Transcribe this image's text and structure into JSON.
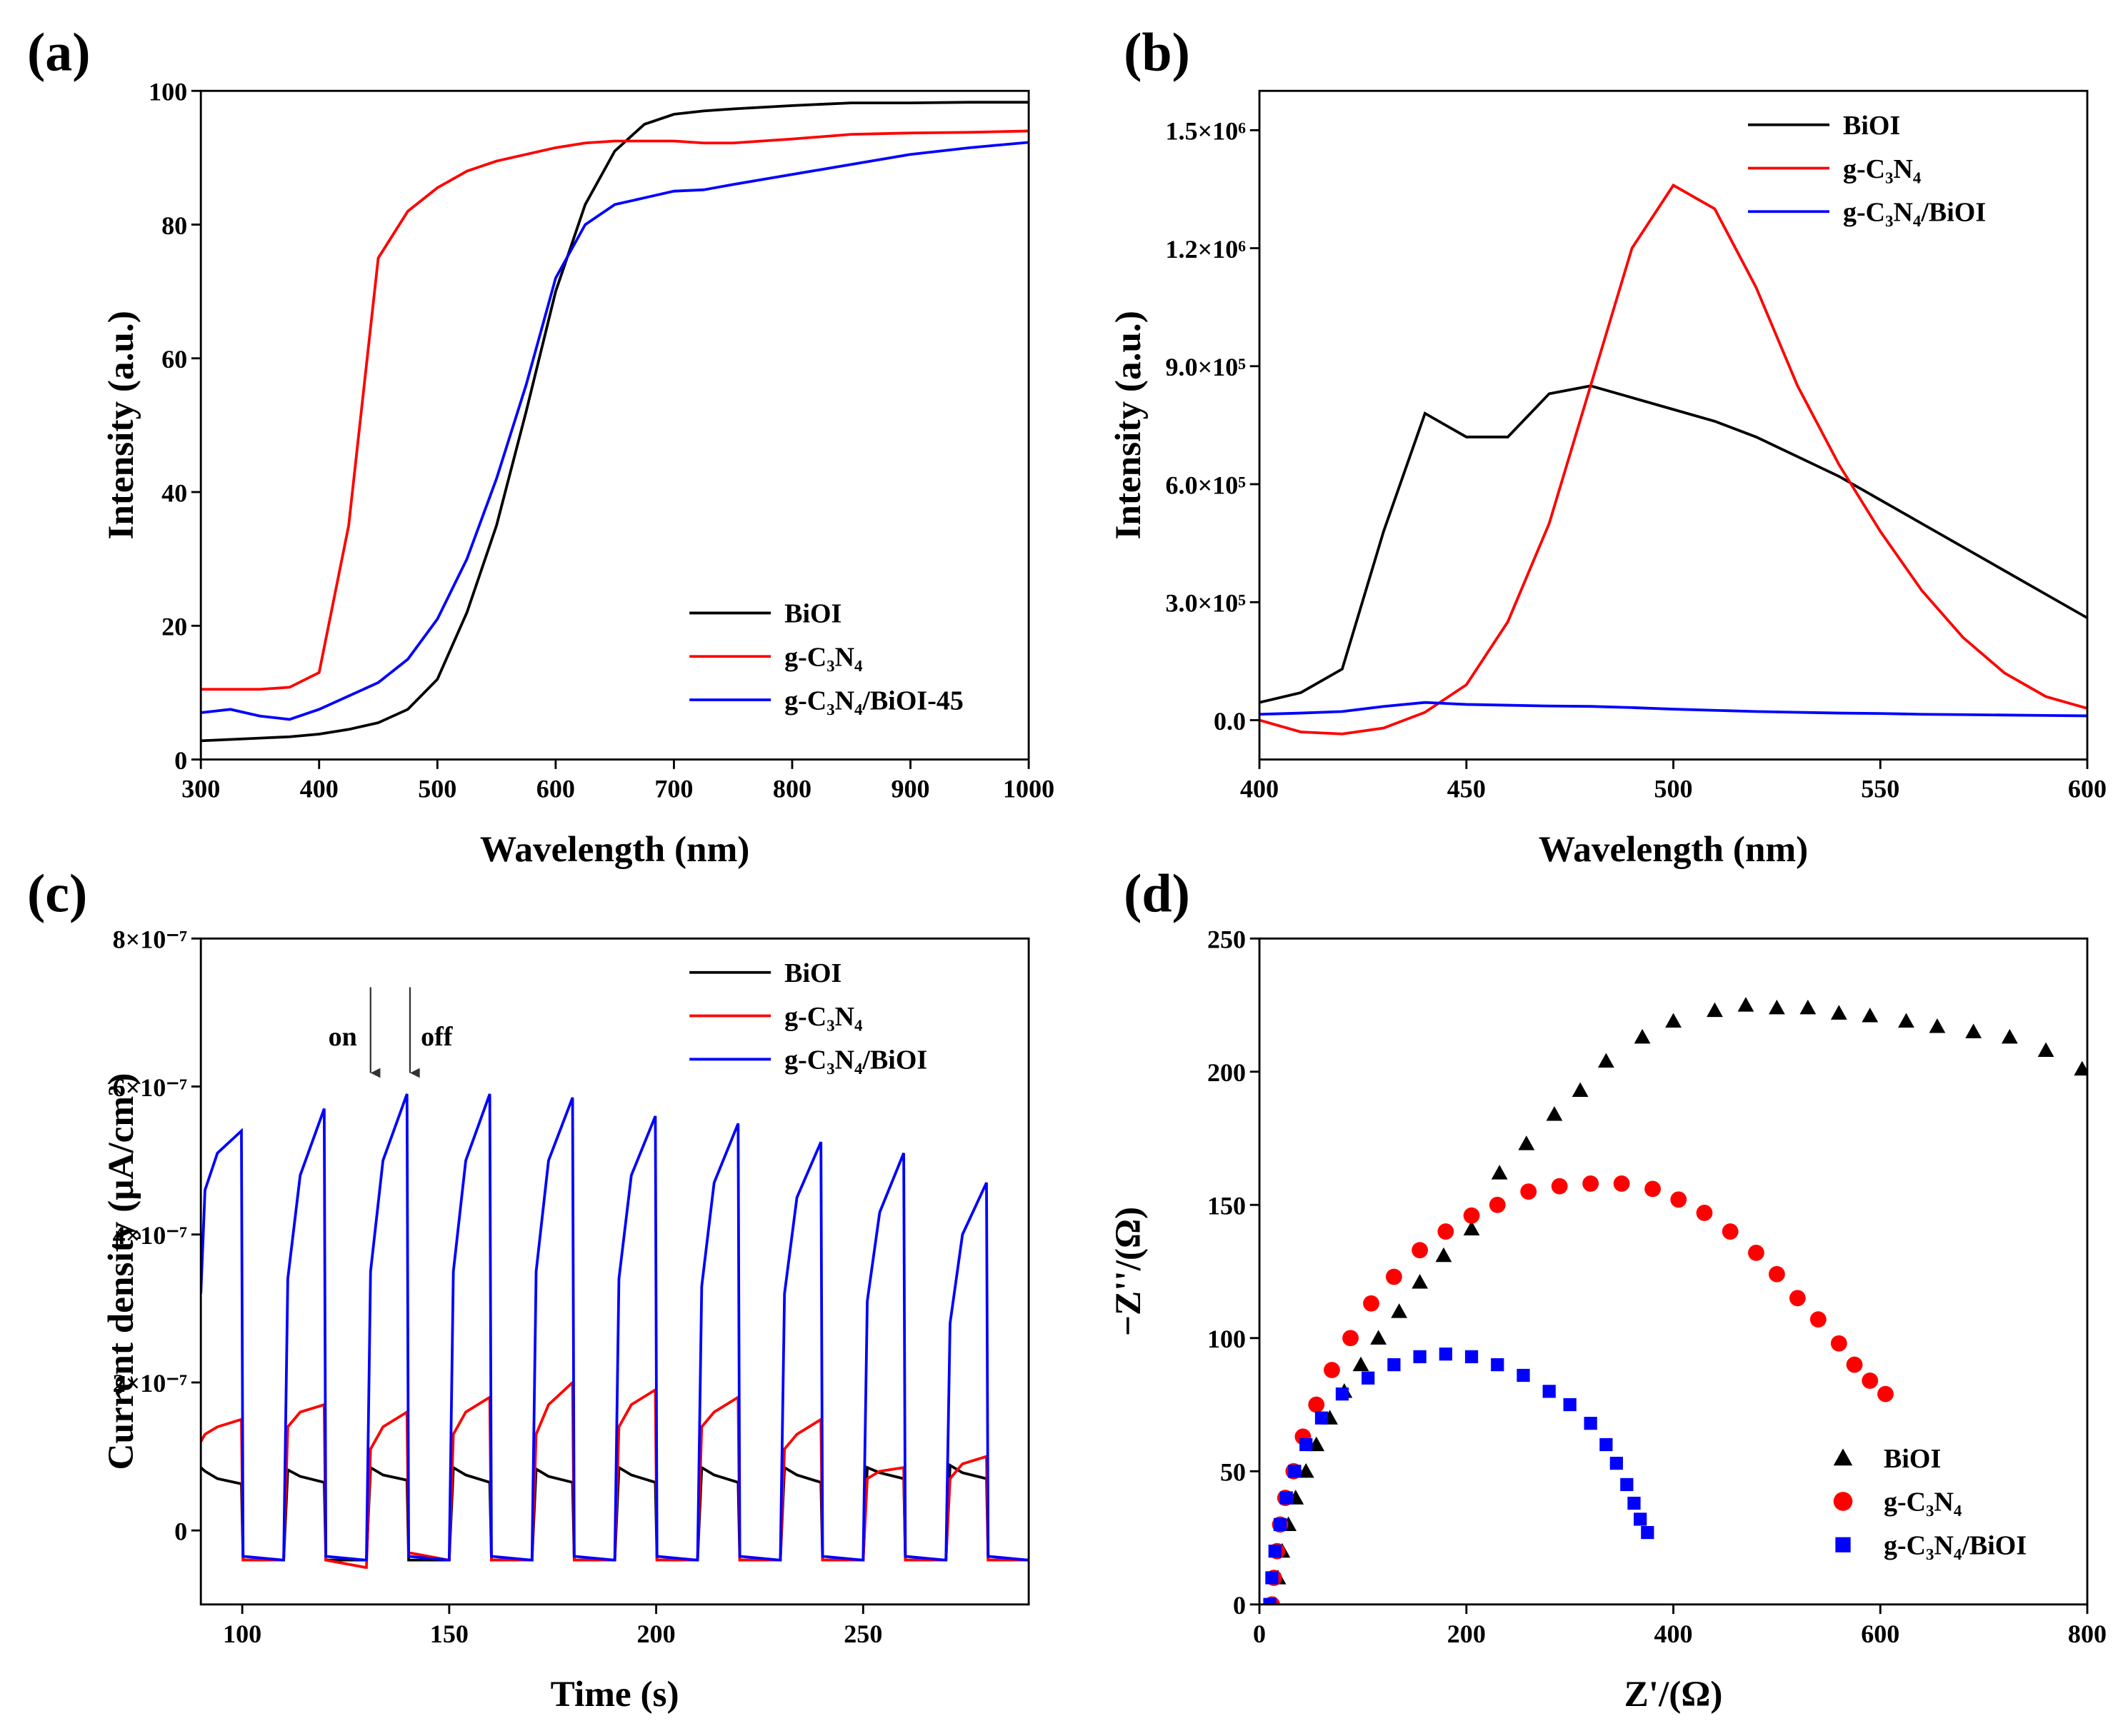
{
  "chart_data": [
    {
      "type": "line",
      "panel": "(a)",
      "xlabel": "Wavelength (nm)",
      "ylabel": "Intensity (a.u.)",
      "xlim": [
        300,
        1000
      ],
      "xticks": [
        300,
        400,
        500,
        600,
        700,
        800,
        900,
        1000
      ],
      "ylim": [
        0,
        100
      ],
      "yticks": [
        0,
        20,
        40,
        60,
        80,
        100
      ],
      "legend": "lower right",
      "x": [
        300,
        325,
        350,
        375,
        400,
        425,
        450,
        475,
        500,
        525,
        550,
        575,
        600,
        625,
        650,
        675,
        700,
        725,
        750,
        800,
        850,
        900,
        950,
        1000
      ],
      "series": [
        {
          "name": "BiOI",
          "color": "#000000",
          "values": [
            2.8,
            3,
            3.2,
            3.4,
            3.8,
            4.5,
            5.5,
            7.5,
            12,
            22,
            35,
            52,
            70,
            83,
            91,
            95,
            96.5,
            97,
            97.3,
            97.8,
            98.2,
            98.2,
            98.3,
            98.3
          ]
        },
        {
          "name": "g-C₃N₄",
          "color": "#ff0000",
          "values": [
            10.5,
            10.5,
            10.5,
            10.8,
            13,
            35,
            75,
            82,
            85.5,
            88,
            89.5,
            90.5,
            91.5,
            92.2,
            92.5,
            92.5,
            92.5,
            92.2,
            92.2,
            92.8,
            93.5,
            93.7,
            93.8,
            94
          ]
        },
        {
          "name": "g-C₃N₄/BiOI-45",
          "color": "#0000ff",
          "values": [
            7,
            7.5,
            6.5,
            6,
            7.5,
            9.5,
            11.5,
            15,
            21,
            30,
            42,
            56,
            72,
            80,
            83,
            84,
            85,
            85.2,
            86,
            87.5,
            89,
            90.5,
            91.5,
            92.3
          ]
        }
      ]
    },
    {
      "type": "line",
      "panel": "(b)",
      "xlabel": "Wavelength (nm)",
      "ylabel": "Intensity (a.u.)",
      "xlim": [
        400,
        600
      ],
      "xticks": [
        400,
        450,
        500,
        550,
        600
      ],
      "ylim": [
        -100000,
        1600000
      ],
      "yticks": [
        {
          "value": 0,
          "label": "0.0"
        },
        {
          "value": 300000,
          "label": "3.0×10⁵"
        },
        {
          "value": 600000,
          "label": "6.0×10⁵"
        },
        {
          "value": 900000,
          "label": "9.0×10⁵"
        },
        {
          "value": 1200000,
          "label": "1.2×10⁶"
        },
        {
          "value": 1500000,
          "label": "1.5×10⁶"
        }
      ],
      "legend": "upper right",
      "x": [
        400,
        410,
        420,
        430,
        440,
        450,
        460,
        470,
        480,
        490,
        500,
        510,
        520,
        530,
        540,
        550,
        560,
        570,
        580,
        590,
        600
      ],
      "series": [
        {
          "name": "BiOI",
          "color": "#000000",
          "values": [
            45000,
            70000,
            130000,
            480000,
            780000,
            720000,
            720000,
            830000,
            850000,
            820000,
            790000,
            760000,
            720000,
            670000,
            620000,
            560000,
            500000,
            440000,
            380000,
            320000,
            260000
          ]
        },
        {
          "name": "g-C₃N₄",
          "color": "#ff0000",
          "values": [
            0,
            -30000,
            -35000,
            -20000,
            20000,
            90000,
            250000,
            500000,
            850000,
            1200000,
            1360000,
            1300000,
            1100000,
            850000,
            650000,
            480000,
            330000,
            210000,
            120000,
            60000,
            30000
          ]
        },
        {
          "name": "g-C₃N₄/BiOI",
          "color": "#0000ff",
          "values": [
            15000,
            18000,
            22000,
            35000,
            45000,
            40000,
            38000,
            36000,
            35000,
            32000,
            28000,
            25000,
            22000,
            20000,
            18000,
            17000,
            15000,
            14000,
            13000,
            12000,
            11000
          ]
        }
      ]
    },
    {
      "type": "line",
      "panel": "(c)",
      "xlabel": "Time (s)",
      "ylabel": "Current density (μA/cm²)",
      "xlim": [
        90,
        290
      ],
      "xticks": [
        100,
        150,
        200,
        250
      ],
      "ylim": [
        -1e-07,
        8e-07
      ],
      "yticks": [
        0,
        {
          "value": 2e-07,
          "label": "2×10⁻⁷"
        },
        {
          "value": 4e-07,
          "label": "4×10⁻⁷"
        },
        {
          "value": 6e-07,
          "label": "6×10⁻⁷"
        },
        {
          "value": 8e-07,
          "label": "8×10⁻⁷"
        }
      ],
      "legend": "upper right",
      "annotations": [
        "on",
        "off"
      ],
      "x": [
        90,
        91,
        94,
        99.8,
        100.2,
        109.8,
        110,
        111,
        114,
        119.8,
        120.2,
        129.8,
        130,
        131,
        134,
        139.8,
        140.2,
        149.8,
        150,
        151,
        154,
        159.8,
        160.2,
        169.8,
        170,
        171,
        174,
        179.8,
        180.2,
        189.8,
        190,
        191,
        194,
        199.8,
        200.2,
        209.8,
        210,
        211,
        214,
        219.8,
        220.2,
        229.8,
        230,
        231,
        234,
        239.8,
        240.2,
        249.8,
        250,
        251,
        254,
        259.8,
        260.2,
        269.8,
        270,
        271,
        274,
        279.8,
        280.2,
        289.8
      ],
      "series": [
        {
          "name": "BiOI",
          "color": "#000000",
          "values": [
            8.5e-08,
            8e-08,
            7e-08,
            6.3e-08,
            -4e-08,
            -4e-08,
            -4e-08,
            8.2e-08,
            7.3e-08,
            6.5e-08,
            -4e-08,
            -4e-08,
            -4e-08,
            8.5e-08,
            7.5e-08,
            6.8e-08,
            -4e-08,
            -4e-08,
            -4e-08,
            8.5e-08,
            7.5e-08,
            6.5e-08,
            -4e-08,
            -4e-08,
            -4e-08,
            8.3e-08,
            7.3e-08,
            6.5e-08,
            -4e-08,
            -4e-08,
            -4e-08,
            8.5e-08,
            7.5e-08,
            6.5e-08,
            -4e-08,
            -4e-08,
            -4e-08,
            8.5e-08,
            7.5e-08,
            6.5e-08,
            -4e-08,
            -4e-08,
            -4e-08,
            8.5e-08,
            7.5e-08,
            6.5e-08,
            -4e-08,
            -4e-08,
            -4e-08,
            8.5e-08,
            7.8e-08,
            7e-08,
            -4e-08,
            -4e-08,
            -4e-08,
            8.8e-08,
            7.8e-08,
            7e-08,
            -4e-08,
            -4e-08
          ]
        },
        {
          "name": "g-C₃N₄",
          "color": "#ff0000",
          "values": [
            1.2e-07,
            1.3e-07,
            1.4e-07,
            1.5e-07,
            -4e-08,
            -4e-08,
            -4e-08,
            1.4e-07,
            1.6e-07,
            1.7e-07,
            -4e-08,
            -5e-08,
            -5e-08,
            1.1e-07,
            1.4e-07,
            1.6e-07,
            -3e-08,
            -4e-08,
            -4e-08,
            1.3e-07,
            1.6e-07,
            1.8e-07,
            -4e-08,
            -4e-08,
            -4e-08,
            1.3e-07,
            1.7e-07,
            2e-07,
            -4e-08,
            -4e-08,
            -4e-08,
            1.4e-07,
            1.7e-07,
            1.9e-07,
            -4e-08,
            -4e-08,
            -4e-08,
            1.4e-07,
            1.6e-07,
            1.8e-07,
            -4e-08,
            -4e-08,
            -4e-08,
            1.1e-07,
            1.3e-07,
            1.5e-07,
            -4e-08,
            -4e-08,
            -4e-08,
            7e-08,
            8e-08,
            8.5e-08,
            -4e-08,
            -4e-08,
            -4e-08,
            7e-08,
            9e-08,
            1e-07,
            -4e-08,
            -4e-08
          ]
        },
        {
          "name": "g-C₃N₄/BiOI",
          "color": "#0000ff",
          "values": [
            3.2e-07,
            4.6e-07,
            5.1e-07,
            5.4e-07,
            -3.5e-08,
            -4e-08,
            -4e-08,
            3.4e-07,
            4.8e-07,
            5.7e-07,
            -3.5e-08,
            -4e-08,
            -4e-08,
            3.5e-07,
            5e-07,
            5.9e-07,
            -3.5e-08,
            -4e-08,
            -4e-08,
            3.5e-07,
            5e-07,
            5.9e-07,
            -3.5e-08,
            -4e-08,
            -4e-08,
            3.5e-07,
            5e-07,
            5.85e-07,
            -3.5e-08,
            -4e-08,
            -4e-08,
            3.4e-07,
            4.8e-07,
            5.6e-07,
            -3.5e-08,
            -4e-08,
            -4e-08,
            3.3e-07,
            4.7e-07,
            5.5e-07,
            -3.5e-08,
            -4e-08,
            -4e-08,
            3.2e-07,
            4.5e-07,
            5.25e-07,
            -3.5e-08,
            -4e-08,
            -4e-08,
            3.1e-07,
            4.3e-07,
            5.1e-07,
            -3.5e-08,
            -4e-08,
            -4e-08,
            2.8e-07,
            4e-07,
            4.7e-07,
            -3.5e-08,
            -4e-08
          ]
        }
      ]
    },
    {
      "type": "scatter",
      "panel": "(d)",
      "xlabel": "Z'/(Ω)",
      "ylabel": "−Z''/(Ω)",
      "xlim": [
        0,
        800
      ],
      "xticks": [
        0,
        200,
        400,
        600,
        800
      ],
      "ylim": [
        0,
        250
      ],
      "yticks": [
        0,
        50,
        100,
        150,
        200,
        250
      ],
      "legend": "lower right",
      "series": [
        {
          "name": "BiOI",
          "color": "#000000",
          "marker": "triangle",
          "x": [
            15,
            18,
            22,
            28,
            35,
            45,
            55,
            68,
            82,
            98,
            115,
            135,
            155,
            178,
            205,
            232,
            258,
            285,
            310,
            335,
            370,
            400,
            440,
            470,
            500,
            530,
            560,
            590,
            625,
            655,
            690,
            725,
            760,
            795
          ],
          "values": [
            0,
            10,
            20,
            30,
            40,
            50,
            60,
            70,
            80,
            90,
            100,
            110,
            121,
            131,
            141,
            162,
            173,
            184,
            193,
            204,
            213,
            219,
            223,
            225,
            224,
            224,
            222,
            221,
            219,
            217,
            215,
            213,
            208,
            201
          ]
        },
        {
          "name": "g-C₃N₄",
          "color": "#ff0000",
          "marker": "circle",
          "x": [
            12,
            14,
            17,
            20,
            25,
            33,
            42,
            55,
            70,
            88,
            108,
            130,
            155,
            180,
            205,
            230,
            260,
            290,
            320,
            350,
            380,
            405,
            430,
            455,
            480,
            500,
            520,
            540,
            560,
            575,
            590,
            605
          ],
          "values": [
            0,
            10,
            20,
            30,
            40,
            50,
            63,
            75,
            88,
            100,
            113,
            123,
            133,
            140,
            146,
            150,
            155,
            157,
            158,
            158,
            156,
            152,
            147,
            140,
            132,
            124,
            115,
            107,
            98,
            90,
            84,
            79
          ]
        },
        {
          "name": "g-C₃N₄/BiOI",
          "color": "#0000ff",
          "marker": "square",
          "x": [
            10,
            12,
            15,
            20,
            26,
            34,
            45,
            60,
            80,
            105,
            130,
            155,
            180,
            205,
            230,
            255,
            280,
            300,
            320,
            335,
            345,
            355,
            362,
            368,
            375
          ],
          "values": [
            0,
            10,
            20,
            30,
            40,
            50,
            60,
            70,
            79,
            85,
            90,
            93,
            94,
            93,
            90,
            86,
            80,
            75,
            68,
            60,
            53,
            45,
            38,
            32,
            27
          ]
        }
      ]
    }
  ]
}
